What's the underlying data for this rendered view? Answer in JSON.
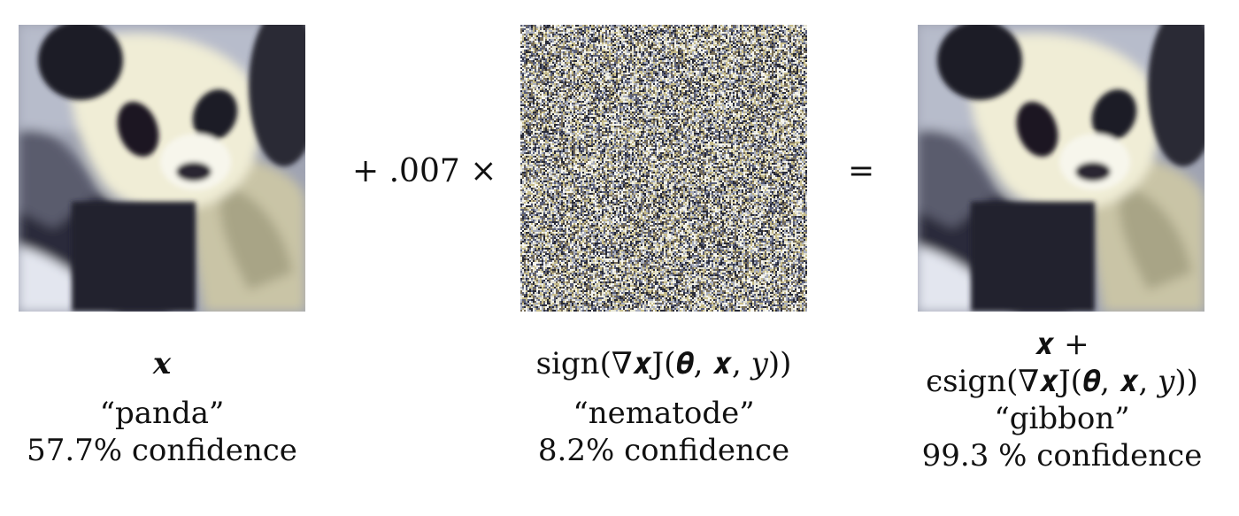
{
  "panels": [
    {
      "image": "panda",
      "formula_lines": [
        "𝒙"
      ],
      "label": "“panda”",
      "confidence": "57.7% confidence"
    },
    {
      "image": "noise",
      "formula_lines": [
        "sign(∇𝒙J(𝜽, 𝒙, 𝑦))"
      ],
      "label": "“nematode”",
      "confidence": "8.2% confidence"
    },
    {
      "image": "panda",
      "formula_lines": [
        "𝒙 +",
        "ϵsign(∇𝒙J(𝜽, 𝒙, 𝑦))"
      ],
      "label": "“gibbon”",
      "confidence": "99.3 % confidence"
    }
  ],
  "operators": {
    "plus_times": "+ .007 ×",
    "equals": "="
  }
}
